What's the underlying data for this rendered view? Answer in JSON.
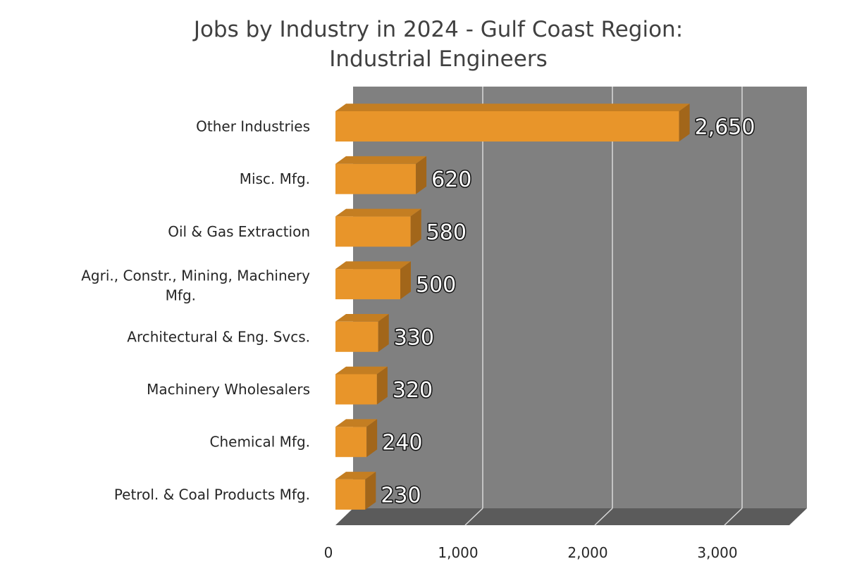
{
  "chart_data": {
    "type": "bar",
    "orientation": "horizontal",
    "title": "Jobs by Industry in 2024 - Gulf Coast Region:\nIndustrial Engineers",
    "title_lines": [
      "Jobs by Industry in 2024 - Gulf Coast Region:",
      "Industrial Engineers"
    ],
    "categories": [
      "Other Industries",
      "Misc. Mfg.",
      "Oil & Gas Extraction",
      "Agri., Constr., Mining, Machinery Mfg.",
      "Architectural & Eng. Svcs.",
      "Machinery Wholesalers",
      "Chemical Mfg.",
      "Petrol. & Coal Products Mfg."
    ],
    "category_lines": [
      [
        "Other Industries"
      ],
      [
        "Misc. Mfg."
      ],
      [
        "Oil & Gas Extraction"
      ],
      [
        "Agri., Constr., Mining, Machinery",
        "Mfg."
      ],
      [
        "Architectural & Eng. Svcs."
      ],
      [
        "Machinery Wholesalers"
      ],
      [
        "Chemical Mfg."
      ],
      [
        "Petrol. & Coal Products Mfg."
      ]
    ],
    "values": [
      2650,
      620,
      580,
      500,
      330,
      320,
      240,
      230
    ],
    "data_labels": [
      "2,650",
      "620",
      "580",
      "500",
      "330",
      "320",
      "240",
      "230"
    ],
    "xlim": [
      0,
      3500
    ],
    "x_ticks": [
      0,
      1000,
      2000,
      3000
    ],
    "x_tick_labels": [
      "0",
      "1,000",
      "2,000",
      "3,000"
    ],
    "xlabel": "",
    "ylabel": "",
    "grid": true,
    "style": "3d",
    "colors": {
      "bar_front": "#E8952A",
      "bar_top": "#C47E22",
      "bar_side": "#A2661A",
      "wall": "#808080",
      "floor": "#5B5B5B",
      "gridline": "#D9D9D9"
    }
  }
}
